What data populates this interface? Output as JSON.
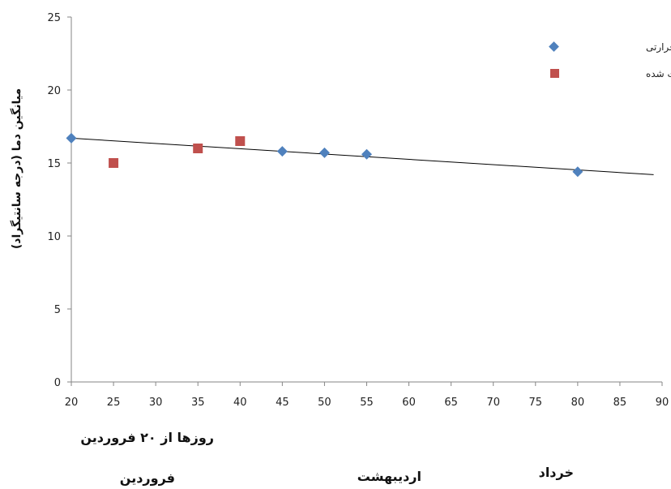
{
  "chart_data": {
    "type": "scatter",
    "title": "",
    "ylabel": "میانگین دما (درجه سانتیگراد)",
    "xlabel": "روزها از ۲۰ فروردین",
    "xlim": [
      20,
      90
    ],
    "ylim": [
      0,
      25
    ],
    "x_ticks": [
      20,
      25,
      30,
      35,
      40,
      45,
      50,
      55,
      60,
      65,
      70,
      75,
      80,
      85,
      90
    ],
    "y_ticks": [
      0,
      5,
      10,
      15,
      20,
      25
    ],
    "grid": false,
    "legend_position": "top-right",
    "series": [
      {
        "name": "منحنی خط حرارتی",
        "marker": "diamond",
        "color": "#4F81BD",
        "points": [
          {
            "x": 20,
            "y": 16.7
          },
          {
            "x": 45,
            "y": 15.8
          },
          {
            "x": 50,
            "y": 15.7
          },
          {
            "x": 55,
            "y": 15.6
          },
          {
            "x": 80,
            "y": 14.4
          }
        ]
      },
      {
        "name": "دما های ثبت شده",
        "marker": "square",
        "color": "#C0504D",
        "points": [
          {
            "x": 25,
            "y": 15.0
          },
          {
            "x": 35,
            "y": 16.0
          },
          {
            "x": 40,
            "y": 16.5
          }
        ]
      }
    ],
    "trendline": {
      "color": "#000000",
      "from": {
        "x": 20,
        "y": 16.7
      },
      "to": {
        "x": 89,
        "y": 14.2
      }
    },
    "month_labels": [
      "فروردین",
      "اردیبهشت",
      "خرداد"
    ]
  }
}
